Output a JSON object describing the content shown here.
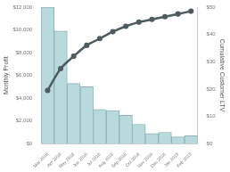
{
  "chart_data": {
    "type": "bar",
    "categories": [
      "Mar 2018",
      "Apr 2018",
      "May 2018",
      "Jun 2018",
      "Jul 2018",
      "Aug 2018",
      "Sep 2018",
      "Oct 2018",
      "Nov 2018",
      "Dec 2018",
      "Jan 2019",
      "Feb 2019"
    ],
    "y_label": "Monthly Profit",
    "y2_label": "Cumulative Customer LTV",
    "series": [
      {
        "type": "bar",
        "color": "#b9dadd",
        "values": [
          12000,
          9900,
          5300,
          5000,
          3000,
          2900,
          2500,
          1700,
          900,
          1000,
          600,
          700
        ]
      },
      {
        "type": "line",
        "axis": "y2",
        "color": "#4e5b5f",
        "marker": "circle",
        "line_style": "solid",
        "values": [
          19.5,
          27.5,
          32,
          36,
          38.5,
          41,
          43,
          44.5,
          45.5,
          46.5,
          47.5,
          48.5
        ]
      }
    ],
    "ylim": [
      0,
      12000
    ],
    "yticks": [
      {
        "value": 0,
        "label": "$0"
      },
      {
        "value": 2000,
        "label": "$2,000"
      },
      {
        "value": 4000,
        "label": "$4,000"
      },
      {
        "value": 6000,
        "label": "$6,000"
      },
      {
        "value": 8000,
        "label": "$8,000"
      },
      {
        "value": 10000,
        "label": "$10,000"
      },
      {
        "value": 12000,
        "label": "$12,000"
      }
    ],
    "y2lim": [
      0,
      50
    ],
    "y2ticks": [
      {
        "value": 0,
        "label": "$0"
      },
      {
        "value": 10,
        "label": "$10"
      },
      {
        "value": 20,
        "label": "$20"
      },
      {
        "value": 30,
        "label": "$30"
      },
      {
        "value": 40,
        "label": "$40"
      },
      {
        "value": 50,
        "label": "$50"
      }
    ],
    "grid": false
  }
}
